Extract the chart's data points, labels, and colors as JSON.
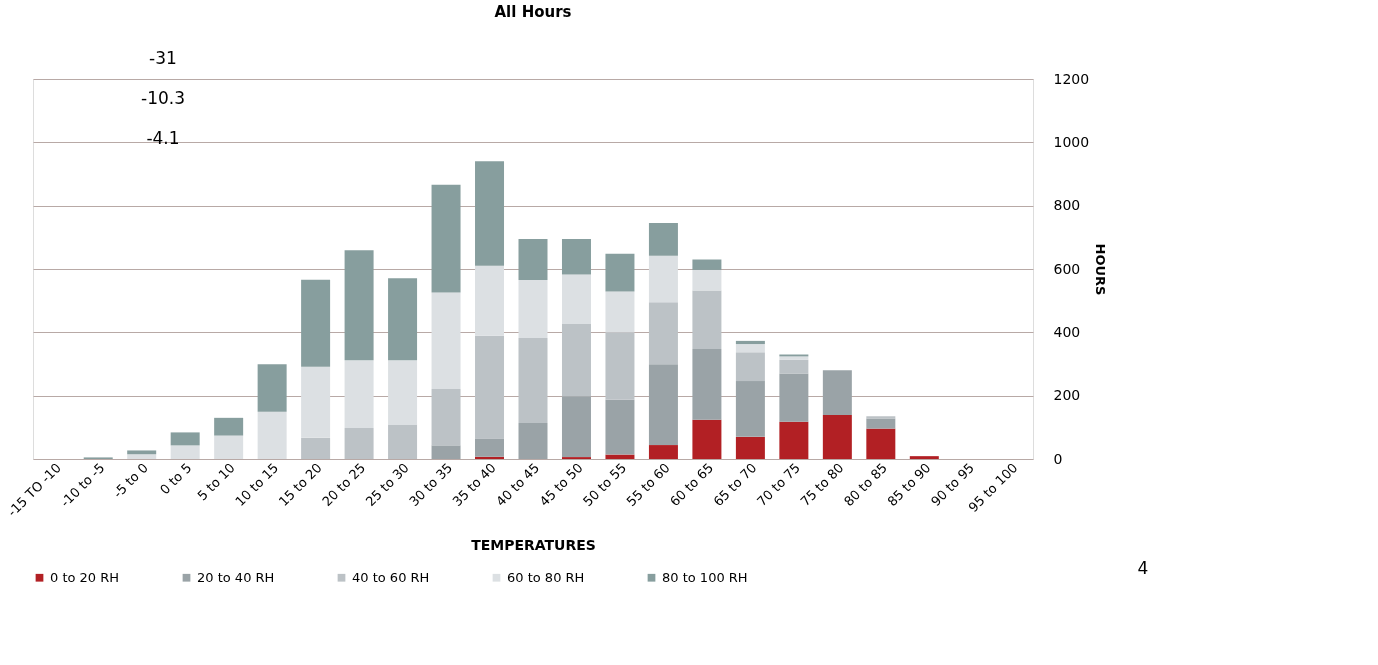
{
  "chart_data": {
    "type": "bar",
    "stacked": true,
    "title": "All Hours",
    "xlabel": "TEMPERATURES",
    "ylabel": "HOURS",
    "categories": [
      "-15 TO -10",
      "-10 to -5",
      "-5 to 0",
      "0 to 5",
      "5 to 10",
      "10 to 15",
      "15 to 20",
      "20 to 25",
      "25 to 30",
      "30 to 35",
      "35 to 40",
      "40 to 45",
      "45 to 50",
      "50 to 55",
      "55 to 60",
      "60 to 65",
      "65 to 70",
      "70 to 75",
      "75 to 80",
      "80 to 85",
      "85 to 90",
      "90 to 95",
      "95 to 100"
    ],
    "series": [
      {
        "name": "0 to 20 RH",
        "color": "#b22024",
        "values": [
          0,
          0,
          0,
          0,
          0,
          0,
          0,
          0,
          0,
          0,
          7,
          0,
          6,
          14,
          44,
          124,
          70,
          118,
          139,
          96,
          9,
          0,
          0
        ]
      },
      {
        "name": "20 to 40 RH",
        "color": "#9aa3a7",
        "values": [
          0,
          0,
          0,
          0,
          0,
          0,
          0,
          0,
          0,
          43,
          58,
          114,
          192,
          173,
          255,
          223,
          176,
          151,
          141,
          32,
          0,
          0,
          0
        ]
      },
      {
        "name": "40 to 60 RH",
        "color": "#bcc2c6",
        "values": [
          0,
          0,
          0,
          0,
          0,
          null,
          67,
          98,
          109,
          178,
          324,
          268,
          230,
          213,
          196,
          185,
          91,
          44,
          0,
          7,
          0,
          0,
          0
        ]
      },
      {
        "name": "60 to 80 RH",
        "color": "#dce0e3",
        "values": [
          0,
          0,
          15,
          43,
          74,
          149,
          224,
          214,
          203,
          305,
          221,
          183,
          155,
          129,
          147,
          65,
          26,
          11,
          0,
          0,
          0,
          0,
          0
        ]
      },
      {
        "name": "80 to 100 RH",
        "color": "#879e9e",
        "values": [
          0,
          5,
          12,
          41,
          56,
          150,
          275,
          347,
          259,
          340,
          330,
          130,
          112,
          119,
          103,
          33,
          10,
          6,
          0,
          0,
          0,
          0,
          0
        ]
      }
    ],
    "ylim": [
      0,
      1200
    ],
    "yticks": [
      0,
      200,
      400,
      600,
      800,
      1000,
      1200
    ],
    "grid": "y",
    "legend": "bottom",
    "annotations": [
      "-31",
      "-10.3",
      "-4.1",
      "4"
    ]
  }
}
